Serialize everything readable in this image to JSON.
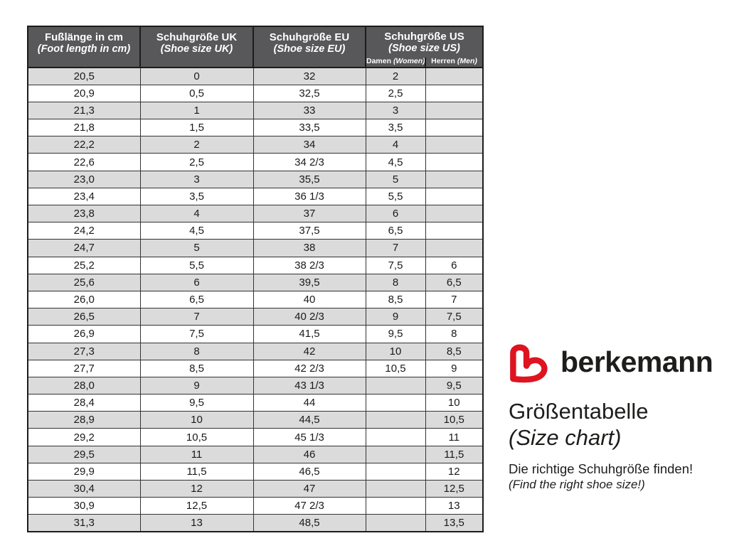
{
  "colors": {
    "header_bg": "#58585a",
    "row_alt_bg": "#dbdbdb",
    "grid_line": "#333333",
    "brand_red": "#de1420",
    "text": "#1a1a1a"
  },
  "brand": {
    "logo_icon": "berkemann-b-mark",
    "logo_text": "berkemann",
    "title_de": "Größentabelle",
    "title_en": "(Size chart)",
    "tagline_de": "Die richtige Schuhgröße finden!",
    "tagline_en": "(Find the right shoe size!)"
  },
  "chart_data": {
    "type": "table",
    "title": "Größentabelle (Size chart)",
    "headers": [
      {
        "de": "Fußlänge in cm",
        "en": "(Foot length in cm)"
      },
      {
        "de": "Schuhgröße UK",
        "en": "(Shoe size UK)"
      },
      {
        "de": "Schuhgröße EU",
        "en": "(Shoe size EU)"
      },
      {
        "de": "Schuhgröße US",
        "en": "(Shoe size US)"
      }
    ],
    "us_subcolumns": [
      {
        "de": "Damen",
        "en": "(Women)"
      },
      {
        "de": "Herren",
        "en": "(Men)"
      }
    ],
    "rows": [
      [
        "20,5",
        "0",
        "32",
        "2",
        ""
      ],
      [
        "20,9",
        "0,5",
        "32,5",
        "2,5",
        ""
      ],
      [
        "21,3",
        "1",
        "33",
        "3",
        ""
      ],
      [
        "21,8",
        "1,5",
        "33,5",
        "3,5",
        ""
      ],
      [
        "22,2",
        "2",
        "34",
        "4",
        ""
      ],
      [
        "22,6",
        "2,5",
        "34 2/3",
        "4,5",
        ""
      ],
      [
        "23,0",
        "3",
        "35,5",
        "5",
        ""
      ],
      [
        "23,4",
        "3,5",
        "36 1/3",
        "5,5",
        ""
      ],
      [
        "23,8",
        "4",
        "37",
        "6",
        ""
      ],
      [
        "24,2",
        "4,5",
        "37,5",
        "6,5",
        ""
      ],
      [
        "24,7",
        "5",
        "38",
        "7",
        ""
      ],
      [
        "25,2",
        "5,5",
        "38 2/3",
        "7,5",
        "6"
      ],
      [
        "25,6",
        "6",
        "39,5",
        "8",
        "6,5"
      ],
      [
        "26,0",
        "6,5",
        "40",
        "8,5",
        "7"
      ],
      [
        "26,5",
        "7",
        "40 2/3",
        "9",
        "7,5"
      ],
      [
        "26,9",
        "7,5",
        "41,5",
        "9,5",
        "8"
      ],
      [
        "27,3",
        "8",
        "42",
        "10",
        "8,5"
      ],
      [
        "27,7",
        "8,5",
        "42 2/3",
        "10,5",
        "9"
      ],
      [
        "28,0",
        "9",
        "43 1/3",
        "",
        "9,5"
      ],
      [
        "28,4",
        "9,5",
        "44",
        "",
        "10"
      ],
      [
        "28,9",
        "10",
        "44,5",
        "",
        "10,5"
      ],
      [
        "29,2",
        "10,5",
        "45 1/3",
        "",
        "11"
      ],
      [
        "29,5",
        "11",
        "46",
        "",
        "11,5"
      ],
      [
        "29,9",
        "11,5",
        "46,5",
        "",
        "12"
      ],
      [
        "30,4",
        "12",
        "47",
        "",
        "12,5"
      ],
      [
        "30,9",
        "12,5",
        "47 2/3",
        "",
        "13"
      ],
      [
        "31,3",
        "13",
        "48,5",
        "",
        "13,5"
      ]
    ]
  }
}
